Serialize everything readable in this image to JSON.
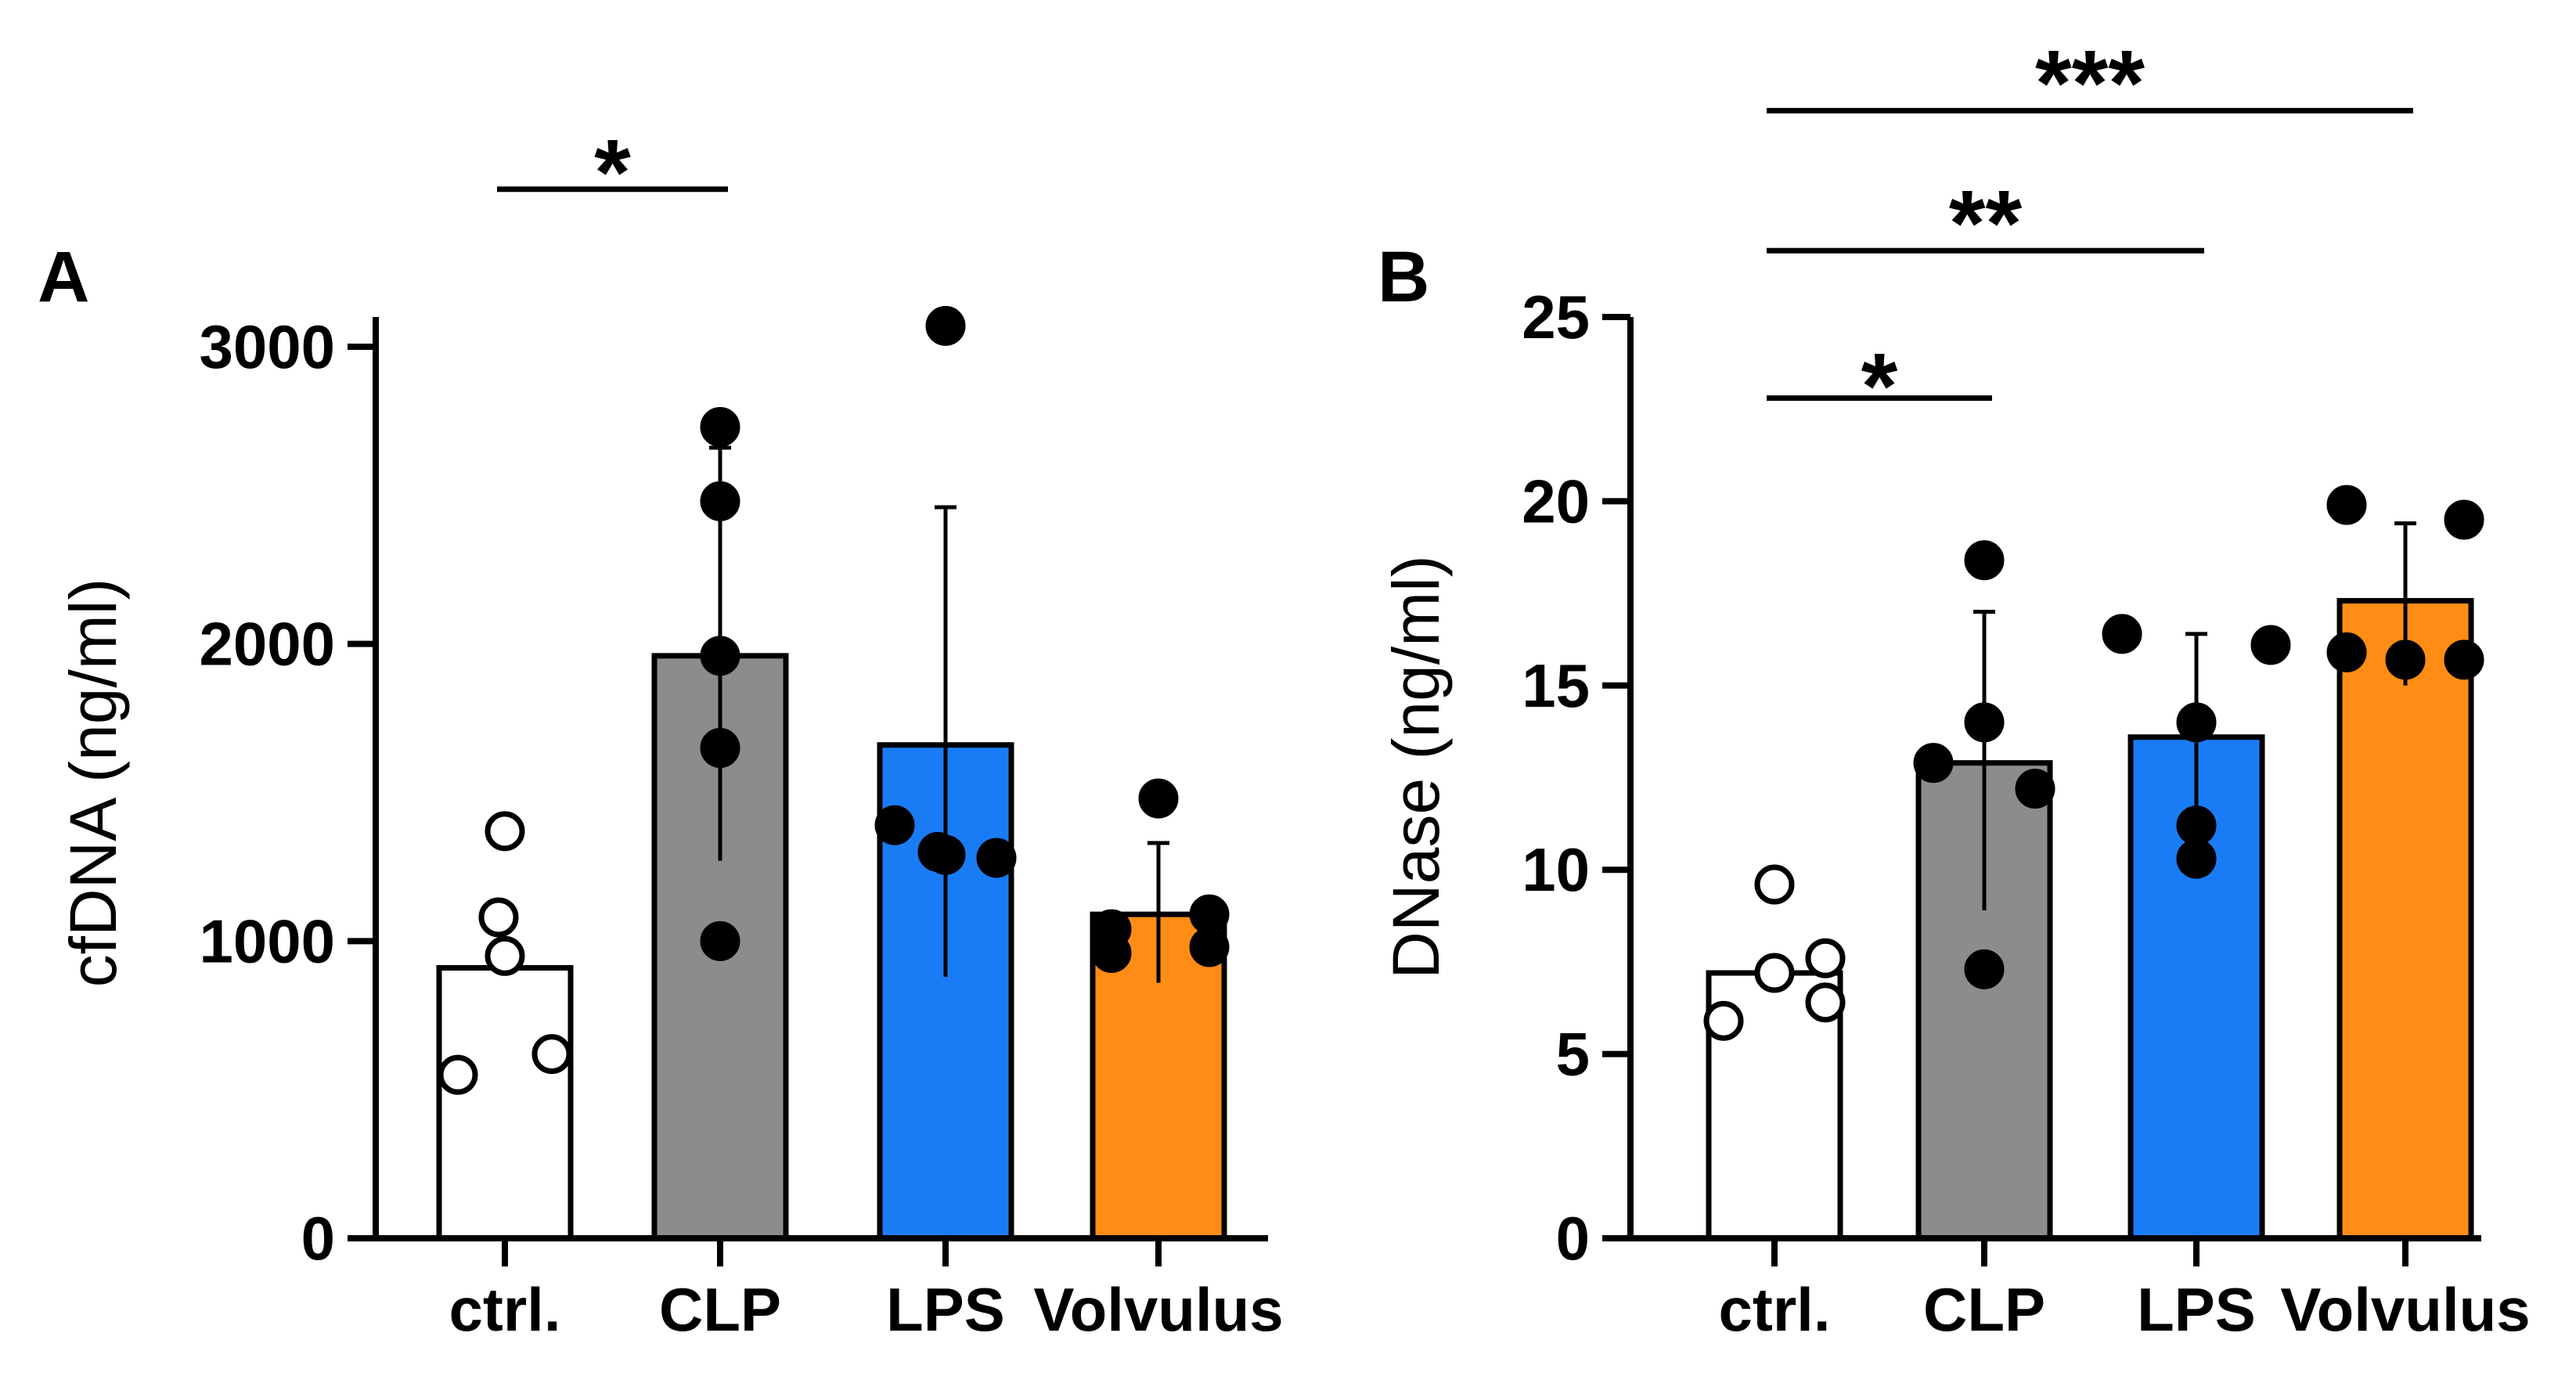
{
  "chart_data": [
    {
      "type": "bar",
      "panel": "A",
      "ylabel": "cfDNA (ng/ml)",
      "ylim": [
        0,
        3100
      ],
      "yticks": [
        0,
        1000,
        2000,
        3000
      ],
      "ytick_labels": [
        "0",
        "1000",
        "2000",
        "3000"
      ],
      "categories": [
        "ctrl.",
        "CLP",
        "LPS",
        "Volvulus"
      ],
      "values": [
        910,
        1960,
        1660,
        1090
      ],
      "error_upper": [
        910,
        2660,
        2460,
        1330
      ],
      "error_lower": [
        910,
        1270,
        880,
        860
      ],
      "points": [
        [
          1370,
          1080,
          950,
          620,
          550
        ],
        [
          2730,
          2480,
          1960,
          1650,
          1000
        ],
        [
          3070,
          1390,
          1280,
          1300,
          1290
        ],
        [
          1480,
          1090,
          1040,
          980,
          960
        ]
      ],
      "fills": [
        "#ffffff",
        "#8c8c8c",
        "#1a7cf5",
        "#ff8c14"
      ],
      "point_styles": [
        "open",
        "filled",
        "filled",
        "filled"
      ],
      "significance": [
        {
          "from": 0,
          "to": 1,
          "label": "*",
          "level": 3530
        }
      ]
    },
    {
      "type": "bar",
      "panel": "B",
      "ylabel": "DNase (ng/ml)",
      "ylim": [
        0,
        25
      ],
      "yticks": [
        0,
        5,
        10,
        15,
        20,
        25
      ],
      "ytick_labels": [
        "0",
        "5",
        "10",
        "15",
        "20",
        "25"
      ],
      "categories": [
        "ctrl.",
        "CLP",
        "LPS",
        "Volvulus"
      ],
      "values": [
        7.2,
        12.9,
        13.6,
        17.3
      ],
      "error_upper": [
        7.2,
        17.0,
        16.4,
        19.4
      ],
      "error_lower": [
        7.2,
        8.9,
        11.0,
        15.0
      ],
      "points": [
        [
          9.6,
          7.6,
          7.2,
          6.4,
          5.9
        ],
        [
          18.4,
          14.0,
          12.9,
          12.2,
          7.3
        ],
        [
          16.4,
          16.1,
          14.0,
          11.2,
          10.3
        ],
        [
          19.9,
          19.5,
          15.9,
          15.7,
          15.7
        ]
      ],
      "fills": [
        "#ffffff",
        "#8c8c8c",
        "#1a7cf5",
        "#ff8c14"
      ],
      "point_styles": [
        "open",
        "filled",
        "filled",
        "filled"
      ],
      "significance": [
        {
          "from": 0,
          "to": 1,
          "label": "*",
          "level": 22.8
        },
        {
          "from": 0,
          "to": 2,
          "label": "**",
          "level": 26.8
        },
        {
          "from": 0,
          "to": 3,
          "label": "***",
          "level": 30.6
        }
      ]
    }
  ]
}
